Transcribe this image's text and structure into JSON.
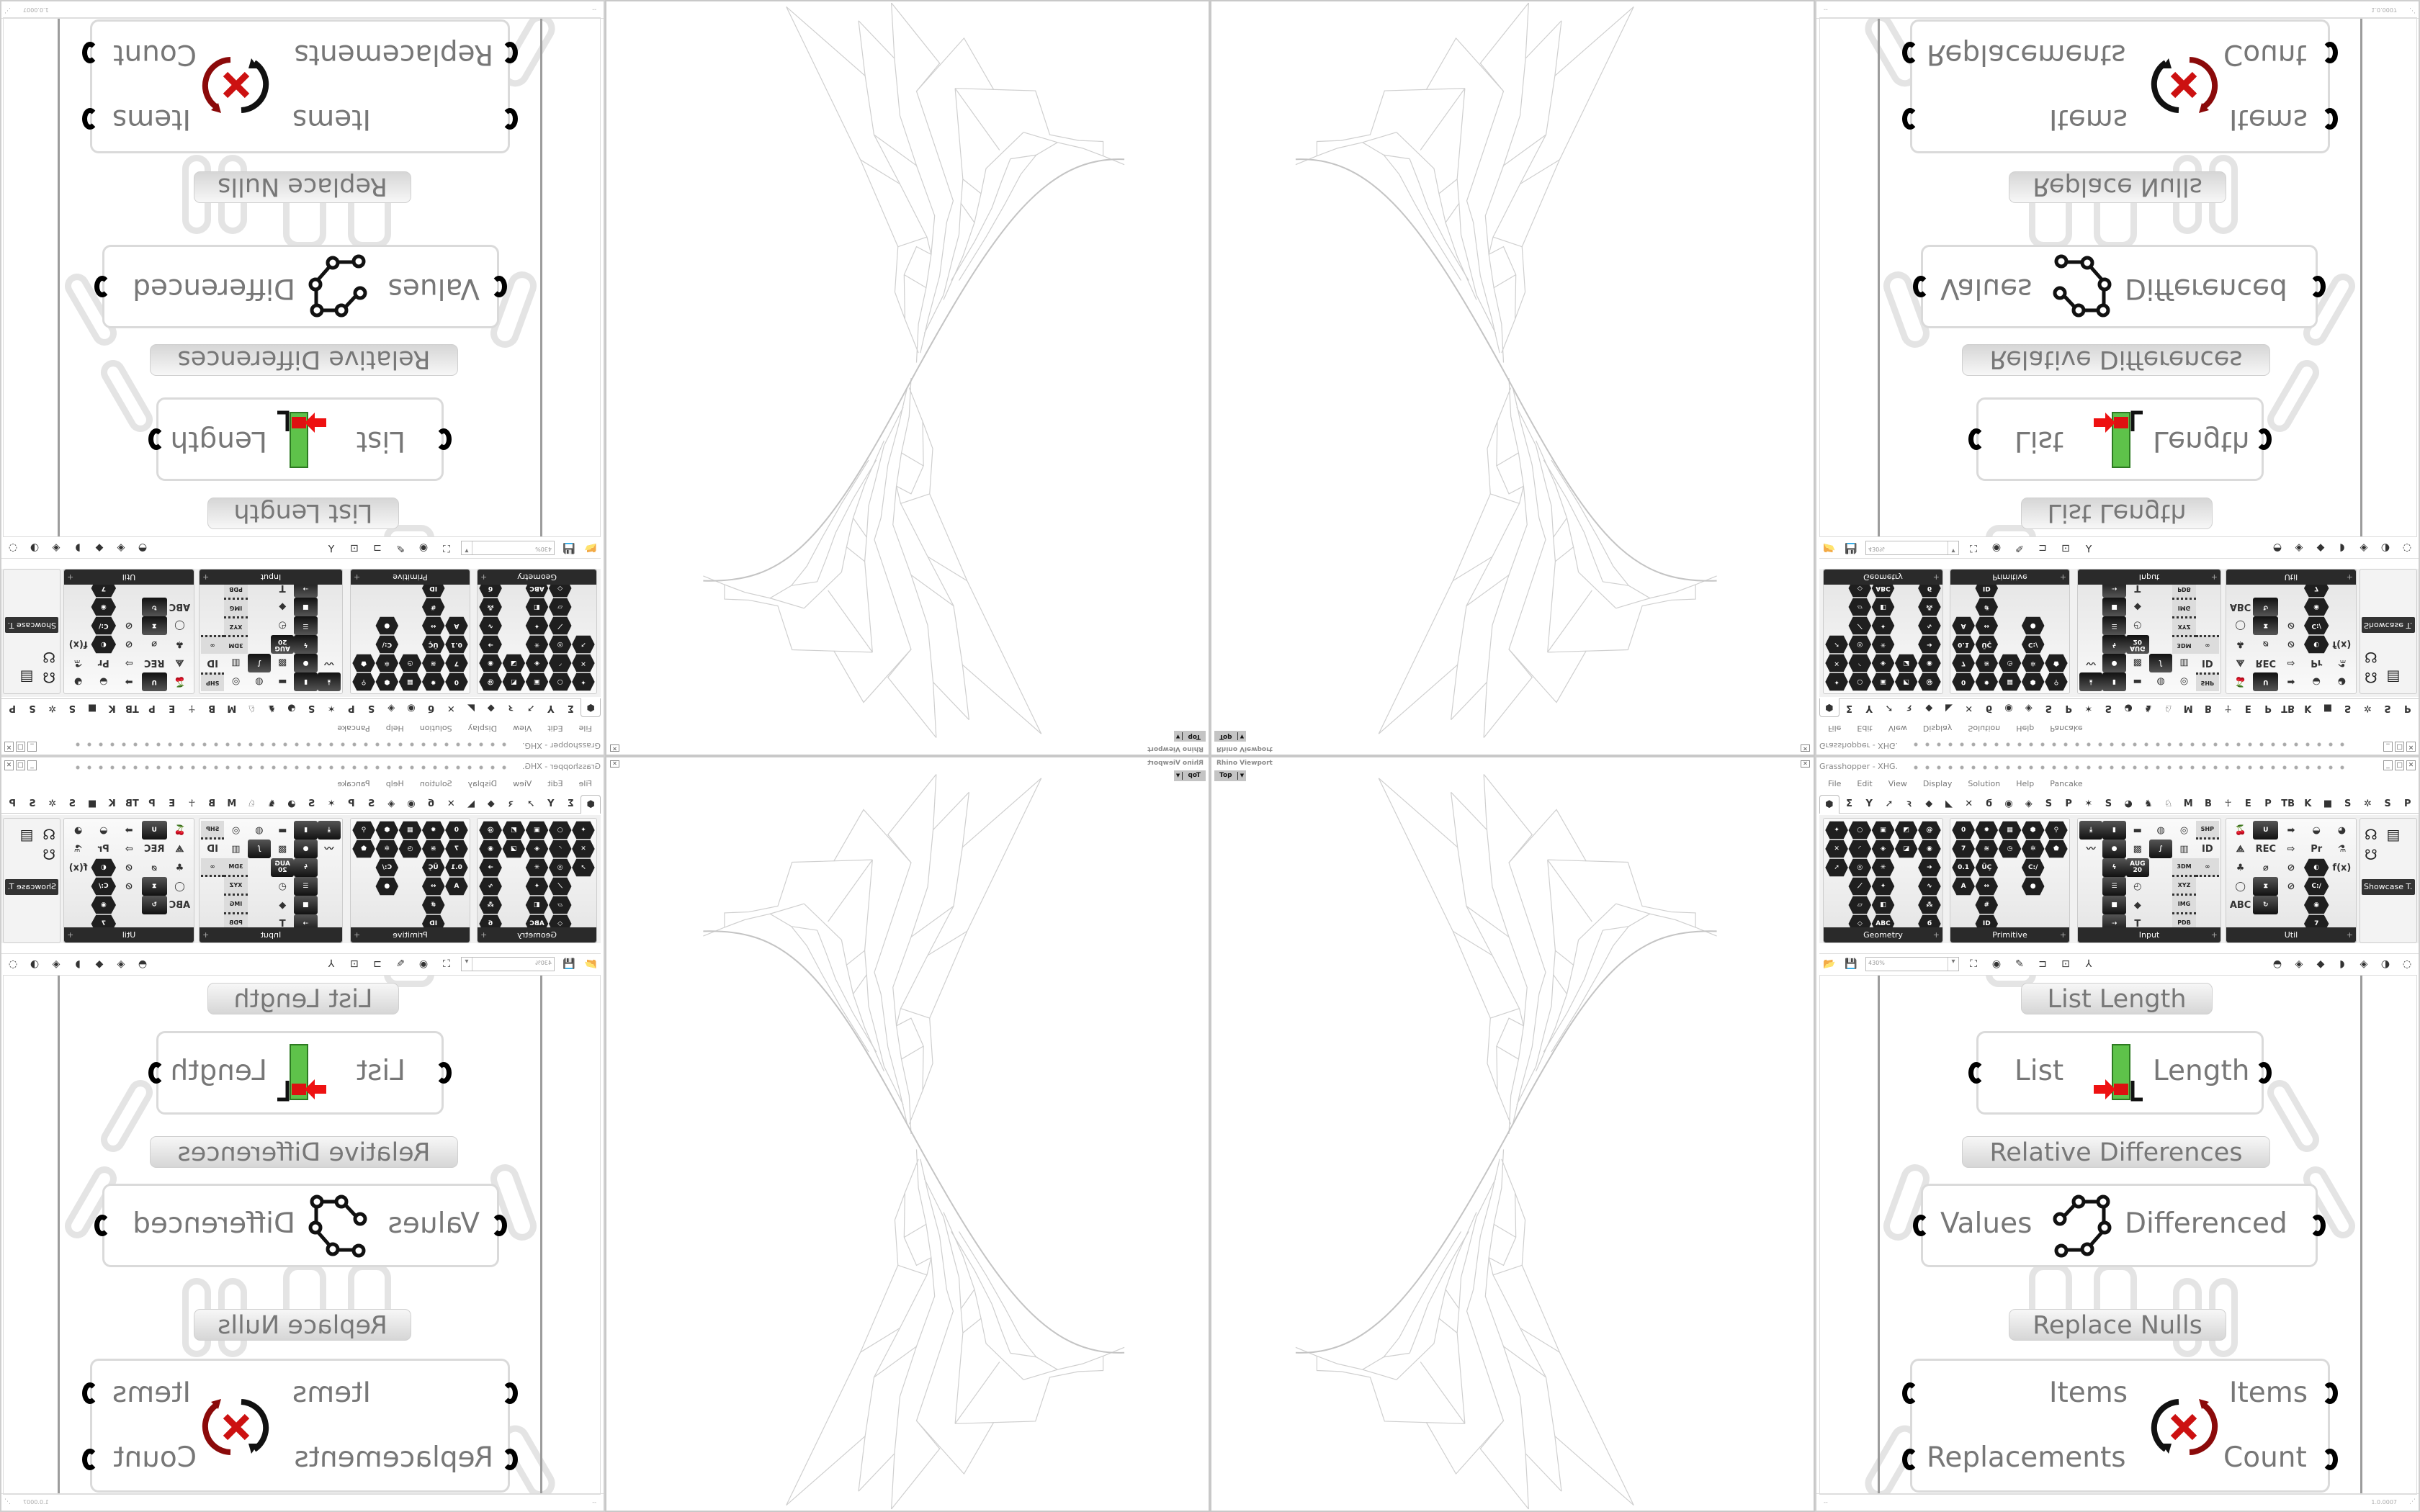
{
  "viewport": {
    "title": "Rhino Viewport",
    "view": "Top",
    "close": "✕"
  },
  "grasshopper": {
    "title": "Grasshopper - XHG.",
    "window_buttons": [
      "_",
      "□",
      "✕"
    ],
    "menu": [
      "File",
      "Edit",
      "View",
      "Display",
      "Solution",
      "Help",
      "Pancake"
    ],
    "tabs": [
      "⬢",
      "Σ",
      "Y",
      "➚",
      "ꝛ",
      "◆",
      "◣",
      "✕",
      "ϭ",
      "◉",
      "◈",
      "S",
      "P",
      "✶",
      "S",
      "◕",
      "♞",
      "♘",
      "M",
      "B",
      "☥",
      "E",
      "P",
      "TB",
      "K",
      "■",
      "S",
      "✲",
      "S",
      "P"
    ],
    "ribbon_groups": [
      {
        "name": "Geometry",
        "icons": [
          {
            "s": "hex",
            "g": "✦"
          },
          {
            "s": "hex",
            "g": "✕"
          },
          {
            "s": "hex",
            "g": "➚"
          },
          {
            "s": "blank"
          },
          {
            "s": "blank"
          },
          {
            "s": "blank"
          },
          {
            "s": "hex",
            "g": "○"
          },
          {
            "s": "hex",
            "g": "◜"
          },
          {
            "s": "hex",
            "g": "◎"
          },
          {
            "s": "hex",
            "g": "⟋"
          },
          {
            "s": "hex",
            "g": "▱"
          },
          {
            "s": "hex",
            "g": "◇"
          },
          {
            "s": "hex",
            "g": "▣"
          },
          {
            "s": "hex",
            "g": "◈"
          },
          {
            "s": "hex",
            "g": "✳"
          },
          {
            "s": "hex",
            "g": "✦"
          },
          {
            "s": "hex",
            "g": "◧"
          },
          {
            "s": "hex",
            "g": "ABC"
          },
          {
            "s": "hex",
            "g": "◩"
          },
          {
            "s": "hex",
            "g": "◪"
          },
          {
            "s": "blank"
          },
          {
            "s": "blank"
          },
          {
            "s": "blank"
          },
          {
            "s": "blank"
          },
          {
            "s": "hex",
            "g": "@"
          },
          {
            "s": "hex",
            "g": "◉"
          },
          {
            "s": "hex",
            "g": "➔"
          },
          {
            "s": "hex",
            "g": "∿"
          },
          {
            "s": "hex",
            "g": "⁂"
          },
          {
            "s": "hex",
            "g": "ϭ"
          }
        ]
      },
      {
        "name": "Primitive",
        "icons": [
          {
            "s": "hex",
            "g": "0"
          },
          {
            "s": "hex",
            "g": "7"
          },
          {
            "s": "hex",
            "g": "0.1"
          },
          {
            "s": "hex",
            "g": "A"
          },
          {
            "s": "blank"
          },
          {
            "s": "blank"
          },
          {
            "s": "hex",
            "g": "✹"
          },
          {
            "s": "hex",
            "g": "≋"
          },
          {
            "s": "hex",
            "g": "ÜÇ"
          },
          {
            "s": "hex",
            "g": "↔"
          },
          {
            "s": "hex",
            "g": "#"
          },
          {
            "s": "hex",
            "g": "ID"
          },
          {
            "s": "hex",
            "g": "▦"
          },
          {
            "s": "hex",
            "g": "◷"
          },
          {
            "s": "blank"
          },
          {
            "s": "blank"
          },
          {
            "s": "blank"
          },
          {
            "s": "blank"
          },
          {
            "s": "hex",
            "g": "⬢"
          },
          {
            "s": "hex",
            "g": "✲"
          },
          {
            "s": "hex",
            "g": "C:/"
          },
          {
            "s": "hex",
            "g": "●"
          },
          {
            "s": "blank"
          },
          {
            "s": "blank"
          },
          {
            "s": "hex",
            "g": "⚲"
          },
          {
            "s": "hex",
            "g": "⬟"
          },
          {
            "s": "blank"
          },
          {
            "s": "blank"
          },
          {
            "s": "blank"
          },
          {
            "s": "blank"
          }
        ]
      },
      {
        "name": "Input",
        "icons": [
          {
            "s": "sq",
            "g": "⤓"
          },
          {
            "s": "col",
            "g": "〰"
          },
          {
            "s": "blank"
          },
          {
            "s": "blank"
          },
          {
            "s": "blank"
          },
          {
            "s": "blank"
          },
          {
            "s": "sq",
            "g": "▮"
          },
          {
            "s": "sq",
            "g": "●"
          },
          {
            "s": "sq",
            "g": "ϟ"
          },
          {
            "s": "sq",
            "g": "☰"
          },
          {
            "s": "sq",
            "g": "■"
          },
          {
            "s": "sq",
            "g": "⇢"
          },
          {
            "s": "col",
            "g": "▬"
          },
          {
            "s": "col",
            "g": "▩"
          },
          {
            "s": "sq",
            "g": "AUG 20"
          },
          {
            "s": "col",
            "g": "◴"
          },
          {
            "s": "col",
            "g": "◆"
          },
          {
            "s": "col",
            "g": "T"
          },
          {
            "s": "col",
            "g": "◍"
          },
          {
            "s": "sq",
            "g": "∫"
          },
          {
            "s": "blank"
          },
          {
            "s": "blank"
          },
          {
            "s": "blank"
          },
          {
            "s": "blank"
          },
          {
            "s": "col",
            "g": "◎"
          },
          {
            "s": "col",
            "g": "▥"
          },
          {
            "s": "chip",
            "g": "3DM"
          },
          {
            "s": "chip",
            "g": "XYZ"
          },
          {
            "s": "chip",
            "g": "IMG"
          },
          {
            "s": "chip",
            "g": "PDB"
          },
          {
            "s": "chip",
            "g": "SHP"
          },
          {
            "s": "col",
            "g": "ID"
          },
          {
            "s": "chip",
            "g": "∞"
          },
          {
            "s": "blank"
          },
          {
            "s": "blank"
          },
          {
            "s": "blank"
          }
        ]
      },
      {
        "name": "Util",
        "icons": [
          {
            "s": "col",
            "g": "🍒"
          },
          {
            "s": "col",
            "g": "⟁"
          },
          {
            "s": "col",
            "g": "♣"
          },
          {
            "s": "col",
            "g": "◯"
          },
          {
            "s": "col",
            "g": "ABC"
          },
          {
            "s": "blank"
          },
          {
            "s": "sq",
            "g": "U"
          },
          {
            "s": "col",
            "g": "REC"
          },
          {
            "s": "col",
            "g": "⌀"
          },
          {
            "s": "sq",
            "g": "⧗"
          },
          {
            "s": "sq",
            "g": "↻"
          },
          {
            "s": "blank"
          },
          {
            "s": "col",
            "g": "➡"
          },
          {
            "s": "col",
            "g": "⇨"
          },
          {
            "s": "col",
            "g": "⊘"
          },
          {
            "s": "col",
            "g": "⊘"
          },
          {
            "s": "blank"
          },
          {
            "s": "blank"
          },
          {
            "s": "col",
            "g": "◒"
          },
          {
            "s": "col",
            "g": "Pr"
          },
          {
            "s": "hex",
            "g": "◐"
          },
          {
            "s": "hex",
            "g": "C:/"
          },
          {
            "s": "hex",
            "g": "◉"
          },
          {
            "s": "hex",
            "g": "7"
          },
          {
            "s": "col",
            "g": "◕"
          },
          {
            "s": "col",
            "g": "⚗"
          },
          {
            "s": "col",
            "g": "f(x)"
          },
          {
            "s": "blank"
          },
          {
            "s": "blank"
          },
          {
            "s": "blank"
          }
        ]
      }
    ],
    "showcase": {
      "label": "Showcase T.",
      "icons": [
        "☊",
        "☋",
        "▤"
      ]
    },
    "toolbar": {
      "zoom": "430%",
      "left_icons": [
        {
          "n": "open-file-icon",
          "g": "📂"
        },
        {
          "n": "save-icon",
          "g": "💾"
        }
      ],
      "mid_icons": [
        {
          "n": "zoom-extents-icon",
          "g": "⛶"
        },
        {
          "n": "preview-eye-icon",
          "g": "◉"
        },
        {
          "n": "sketch-icon",
          "g": "✎"
        },
        {
          "n": "cluster-icon",
          "g": "⊐"
        },
        {
          "n": "panel-icon",
          "g": "⊡"
        },
        {
          "n": "axes-icon",
          "g": "⅄"
        }
      ],
      "right_icons": [
        {
          "n": "preview-wire-icon",
          "g": "◓"
        },
        {
          "n": "preview-shaded-icon",
          "g": "◈"
        },
        {
          "n": "preview-selected-icon",
          "g": "◆"
        },
        {
          "n": "bake-icon",
          "g": "◗"
        },
        {
          "n": "mesh-quality-icon",
          "g": "◈"
        },
        {
          "n": "display-mode-icon",
          "g": "◑"
        },
        {
          "n": "select-icon",
          "g": "◌"
        }
      ]
    },
    "components": [
      {
        "label": "List Length",
        "inputs": [
          "List"
        ],
        "outputs": [
          "Length"
        ],
        "icon": "list-length-icon"
      },
      {
        "label": "Relative Differences",
        "inputs": [
          "Values"
        ],
        "outputs": [
          "Differenced"
        ],
        "icon": "relative-differences-icon"
      },
      {
        "label": "Replace Nulls",
        "inputs": [
          "Items",
          "Replacements"
        ],
        "outputs": [
          "Items",
          "Count"
        ],
        "icon": "replace-nulls-icon"
      }
    ],
    "status": {
      "left": "--",
      "version": "1.0.0007"
    }
  }
}
